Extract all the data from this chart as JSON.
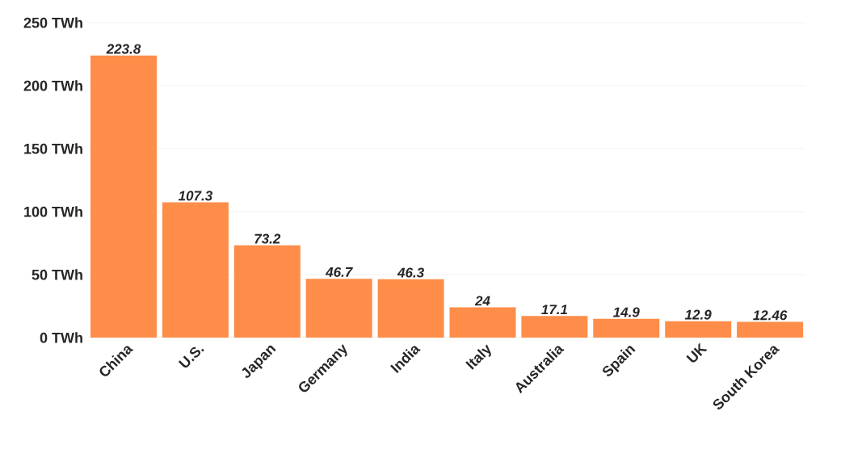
{
  "chart_data": {
    "type": "bar",
    "categories": [
      "China",
      "U.S.",
      "Japan",
      "Germany",
      "India",
      "Italy",
      "Australia",
      "Spain",
      "UK",
      "South Korea"
    ],
    "values": [
      223.8,
      107.3,
      73.2,
      46.7,
      46.3,
      24,
      17.1,
      14.9,
      12.9,
      12.46
    ],
    "color": "#fd8d49",
    "ylim": [
      0,
      250
    ],
    "yticks": [
      {
        "value": 0,
        "label": "0 TWh"
      },
      {
        "value": 50,
        "label": "50 TWh"
      },
      {
        "value": 100,
        "label": "100 TWh"
      },
      {
        "value": 150,
        "label": "150 TWh"
      },
      {
        "value": 200,
        "label": "200 TWh"
      },
      {
        "value": 250,
        "label": "250 TWh"
      }
    ],
    "grid": "y",
    "data_labels": true
  }
}
